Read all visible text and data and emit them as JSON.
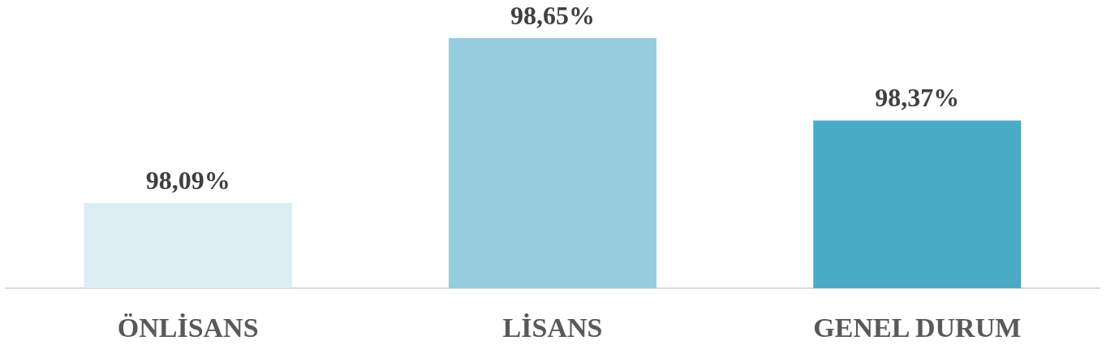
{
  "chart_data": {
    "type": "bar",
    "categories": [
      "ÖNLİSANS",
      "LİSANS",
      "GENEL DURUM"
    ],
    "values": [
      98.09,
      98.65,
      98.37
    ],
    "colors": [
      "#dbedf3",
      "#95cddf",
      "#4aabc6"
    ],
    "value_labels": [
      "98,09%",
      "98,65%",
      "98,37%"
    ],
    "ylim": [
      97.8,
      98.65
    ],
    "tick_labels": "x",
    "grid": false
  }
}
